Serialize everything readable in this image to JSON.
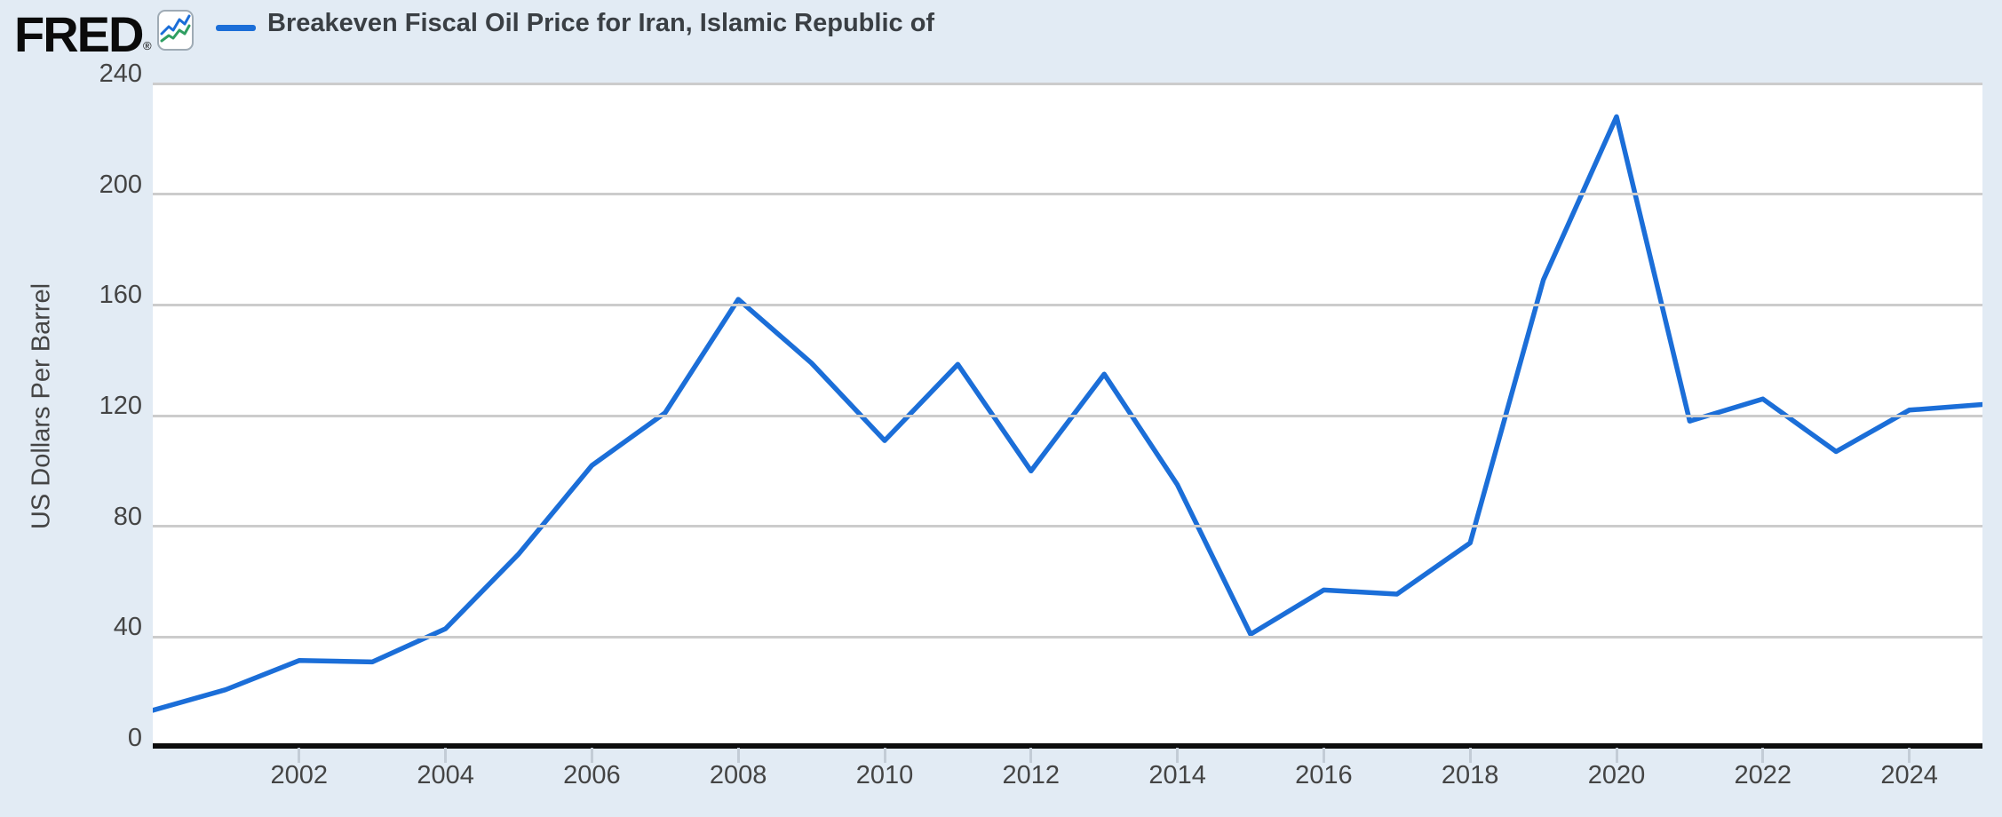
{
  "header": {
    "logo_text": "FRED",
    "registered_mark": "®",
    "legend": {
      "label": "Breakeven Fiscal Oil Price for Iran, Islamic Republic of"
    }
  },
  "colors": {
    "line": "#1b6ed8",
    "background": "#e2ebf4",
    "plot_background": "#ffffff",
    "gridline": "#cccccc",
    "axis": "#0d0d0d",
    "tick_text": "#444444",
    "icon_blue": "#1b6ed8",
    "icon_green": "#2f9e62"
  },
  "chart_data": {
    "type": "line",
    "title": "Breakeven Fiscal Oil Price for Iran, Islamic Republic of",
    "series_name": "Breakeven Fiscal Oil Price for Iran, Islamic Republic of",
    "ylabel": "US Dollars Per Barrel",
    "xlabel": "",
    "x": [
      2000,
      2001,
      2002,
      2003,
      2004,
      2005,
      2006,
      2007,
      2008,
      2009,
      2010,
      2011,
      2012,
      2013,
      2014,
      2015,
      2016,
      2017,
      2018,
      2019,
      2020,
      2021,
      2022,
      2023,
      2024,
      2025
    ],
    "values": [
      13.5,
      21,
      31.5,
      31,
      43,
      70,
      102,
      121,
      162,
      139,
      111,
      138.5,
      100,
      135,
      95,
      41,
      57,
      55.5,
      74,
      169,
      228,
      118,
      126,
      107,
      122,
      124
    ],
    "ylim": [
      0,
      240
    ],
    "xlim": [
      2000,
      2025
    ],
    "y_ticks": [
      0,
      40,
      80,
      120,
      160,
      200,
      240
    ],
    "x_tick_labels": [
      "2002",
      "2004",
      "2006",
      "2008",
      "2010",
      "2012",
      "2014",
      "2016",
      "2018",
      "2020",
      "2022",
      "2024"
    ],
    "x_tick_years": [
      2002,
      2004,
      2006,
      2008,
      2010,
      2012,
      2014,
      2016,
      2018,
      2020,
      2022,
      2024
    ],
    "grid": "horizontal",
    "legend_position": "top-left"
  }
}
